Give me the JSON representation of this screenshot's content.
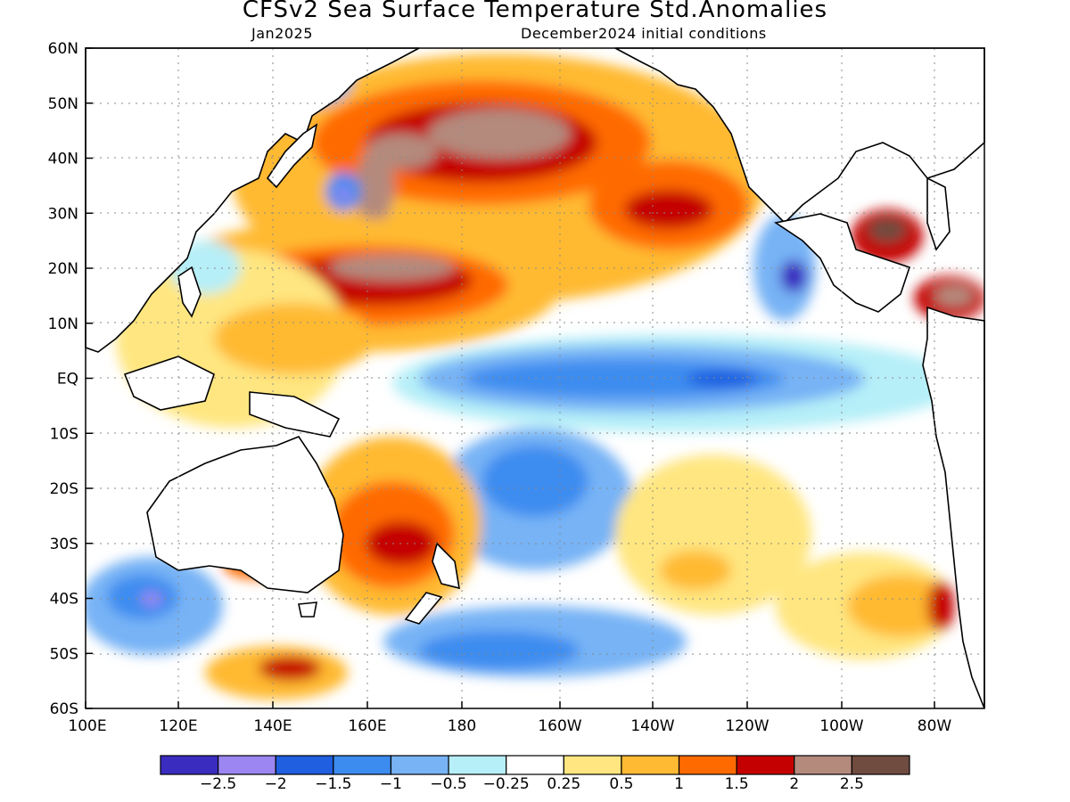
{
  "title": "CFSv2 Sea Surface Temperature Std.Anomalies",
  "subtitle_left": "Jan2025",
  "subtitle_right": "December2024 initial conditions",
  "y_ticks": [
    "60N",
    "50N",
    "40N",
    "30N",
    "20N",
    "10N",
    "EQ",
    "10S",
    "20S",
    "30S",
    "40S",
    "50S",
    "60S"
  ],
  "x_ticks": [
    "100E",
    "120E",
    "140E",
    "160E",
    "180",
    "160W",
    "140W",
    "120W",
    "100W",
    "80W"
  ],
  "colorbar": {
    "colors": [
      "#3a2cbf",
      "#9b86f2",
      "#1f5fe0",
      "#3c8cf0",
      "#77b3f5",
      "#b6eff8",
      "#ffffff",
      "#ffe680",
      "#ffba33",
      "#ff6a00",
      "#c50000",
      "#b48a7d",
      "#704c40"
    ],
    "labels": [
      "-2.5",
      "-2",
      "-1.5",
      "-1",
      "-0.5",
      "-0.25",
      "0.25",
      "0.5",
      "1",
      "1.5",
      "2",
      "2.5"
    ]
  }
}
